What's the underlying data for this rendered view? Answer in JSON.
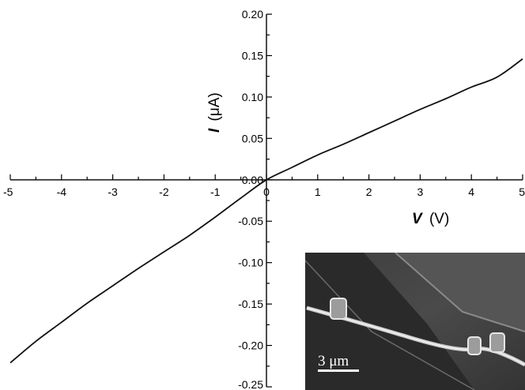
{
  "chart_data": {
    "type": "line",
    "xlabel_var": "V",
    "xlabel_unit": "(V)",
    "ylabel_var": "I",
    "ylabel_unit": "(μA)",
    "xlim": [
      -5,
      5
    ],
    "ylim": [
      -0.25,
      0.2
    ],
    "x_ticks": [
      "-5",
      "-4",
      "-3",
      "-2",
      "-1",
      "0",
      "1",
      "2",
      "3",
      "4",
      "5"
    ],
    "y_ticks": [
      "0.20",
      "0.15",
      "0.10",
      "0.05",
      "0.00",
      "-0.05",
      "-0.10",
      "-0.15",
      "-0.20",
      "-0.25"
    ],
    "series": [
      {
        "x": [
          -5,
          -4.5,
          -4,
          -3.5,
          -3,
          -2.5,
          -2,
          -1.5,
          -1,
          -0.5,
          0,
          0.5,
          1,
          1.5,
          2,
          2.5,
          3,
          3.5,
          4,
          4.5,
          5
        ],
        "y": [
          -0.221,
          -0.195,
          -0.172,
          -0.149,
          -0.128,
          -0.107,
          -0.087,
          -0.067,
          -0.045,
          -0.022,
          0.0,
          0.015,
          0.03,
          0.043,
          0.057,
          0.071,
          0.085,
          0.098,
          0.112,
          0.124,
          0.146
        ]
      }
    ],
    "grid": false
  },
  "inset": {
    "scale_bar_label": "3 μm"
  }
}
